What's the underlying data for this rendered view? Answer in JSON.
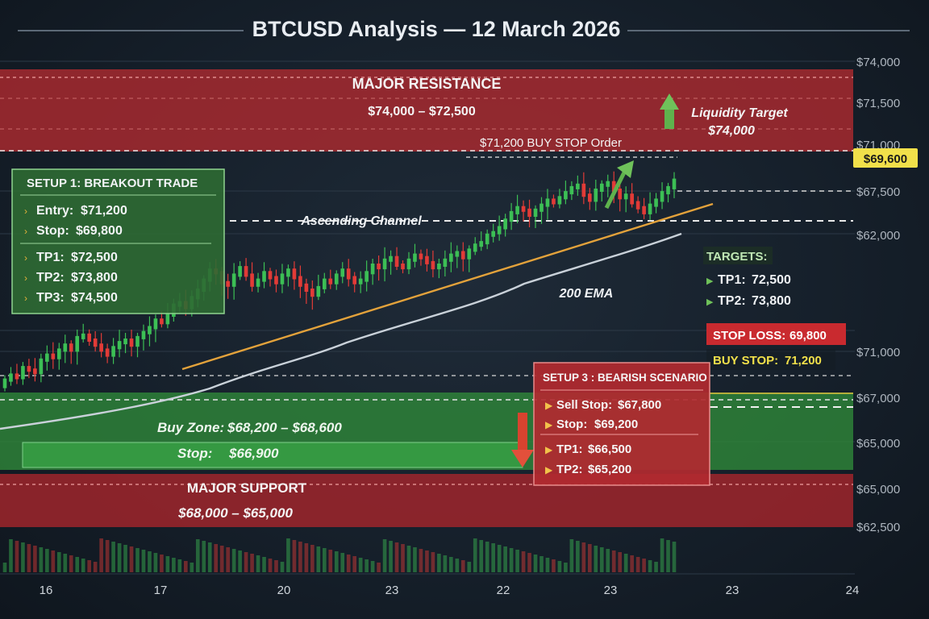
{
  "title": "BTCUSD Analysis — 12 March 2026",
  "chart_data": {
    "type": "candlestick",
    "instrument": "BTCUSD",
    "x_tick_labels": [
      "16",
      "17",
      "20",
      "23",
      "22",
      "23",
      "23",
      "24"
    ],
    "price_tick_labels": [
      "$74,000",
      "$71,500",
      "$71,000",
      "$67,500",
      "$62,000",
      "$71,000",
      "$67,000",
      "$65,000",
      "$65,000",
      "$62,500"
    ],
    "current_price_label": "$69,600",
    "zones": {
      "resistance": {
        "title": "MAJOR RESISTANCE",
        "range": "$74,000 – $72,500"
      },
      "support": {
        "title": "MAJOR SUPPORT",
        "range": "$68,000 – $65,000"
      },
      "buy_zone": {
        "label": "Buy Zone:",
        "range": "$68,200 – $68,600"
      },
      "buy_zone_stop": {
        "label": "Stop:",
        "value": "$66,900"
      }
    },
    "annotations": {
      "buy_stop_order": "$71,200 BUY STOP Order",
      "liquidity_target_label": "Liquidity Target",
      "liquidity_target_value": "$74,000",
      "ascending_channel": "Ascending Channel",
      "ema": "200 EMA"
    },
    "setup1": {
      "title": "SETUP 1: BREAKOUT TRADE",
      "lines": [
        {
          "label": "Entry:",
          "value": "$71,200"
        },
        {
          "label": "Stop:",
          "value": "$69,800"
        },
        {
          "label": "TP1:",
          "value": "$72,500"
        },
        {
          "label": "TP2:",
          "value": "$73,800"
        },
        {
          "label": "TP3:",
          "value": "$74,500"
        }
      ]
    },
    "targets": {
      "title": "TARGETS:",
      "items": [
        {
          "label": "TP1:",
          "value": "72,500"
        },
        {
          "label": "TP2:",
          "value": "73,800"
        }
      ]
    },
    "stop_loss": {
      "label": "STOP LOSS:",
      "value": "69,800"
    },
    "buy_stop": {
      "label": "BUY STOP:",
      "value": "71,200"
    },
    "setup3": {
      "title": "SETUP 3 : BEARISH SCENARIO",
      "lines": [
        {
          "label": "Sell Stop:",
          "value": "$67,800"
        },
        {
          "label": "Stop:",
          "value": "$69,200"
        },
        {
          "label": "TP1:",
          "value": "$66,500"
        },
        {
          "label": "TP2:",
          "value": "$65,200"
        }
      ]
    },
    "colors": {
      "bull": "#3cbf55",
      "bear": "#e23b37",
      "resistance": "#b32a30",
      "support": "#a8262c",
      "buy_zone": "#2f8a3a",
      "trendline": "#e3a23b",
      "ema": "#c9d1d9",
      "current_price": "#f1e04a"
    },
    "price_y_norm": [
      0.86,
      0.84,
      0.85,
      0.81,
      0.82,
      0.83,
      0.78,
      0.76,
      0.77,
      0.74,
      0.72,
      0.74,
      0.69,
      0.68,
      0.7,
      0.72,
      0.74,
      0.76,
      0.73,
      0.71,
      0.7,
      0.72,
      0.69,
      0.67,
      0.65,
      0.62,
      0.63,
      0.6,
      0.56,
      0.55,
      0.57,
      0.53,
      0.5,
      0.46,
      0.42,
      0.43,
      0.47,
      0.48,
      0.44,
      0.41,
      0.44,
      0.48,
      0.46,
      0.43,
      0.45,
      0.47,
      0.44,
      0.42,
      0.45,
      0.48,
      0.5,
      0.52,
      0.49,
      0.46,
      0.47,
      0.44,
      0.42,
      0.45,
      0.47,
      0.46,
      0.43,
      0.4,
      0.41,
      0.38,
      0.37,
      0.4,
      0.41,
      0.38,
      0.36,
      0.37,
      0.39,
      0.41,
      0.4,
      0.38,
      0.36,
      0.35,
      0.37,
      0.34,
      0.32,
      0.31,
      0.28,
      0.27,
      0.25,
      0.22,
      0.19,
      0.17,
      0.18,
      0.2,
      0.18,
      0.16,
      0.14,
      0.15,
      0.13,
      0.11,
      0.09,
      0.08,
      0.12,
      0.14,
      0.1,
      0.08,
      0.07,
      0.1,
      0.13,
      0.12,
      0.15,
      0.17,
      0.19,
      0.16,
      0.14,
      0.11,
      0.09,
      0.06
    ]
  }
}
